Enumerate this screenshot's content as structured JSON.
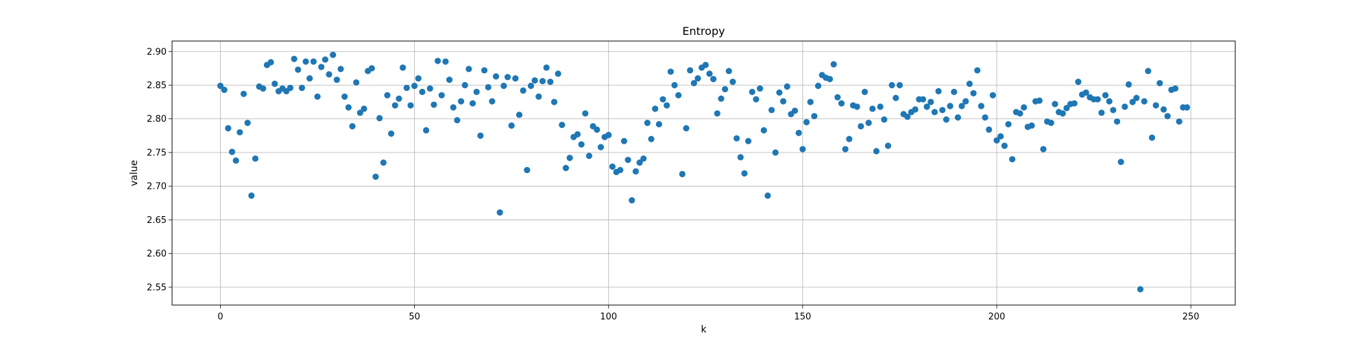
{
  "chart_data": {
    "type": "scatter",
    "title": "Entropy",
    "xlabel": "k",
    "ylabel": "value",
    "xlim": [
      -12.45,
      261.45
    ],
    "ylim": [
      2.5235,
      2.9155
    ],
    "xticks": [
      0,
      50,
      100,
      150,
      200,
      250
    ],
    "yticks": [
      2.55,
      2.6,
      2.65,
      2.7,
      2.75,
      2.8,
      2.85,
      2.9
    ],
    "ytick_labels": [
      "2.55",
      "2.60",
      "2.65",
      "2.70",
      "2.75",
      "2.80",
      "2.85",
      "2.90"
    ],
    "grid": true,
    "color": "#1f77b4",
    "series": [
      {
        "x": [
          0,
          1,
          2,
          3,
          4,
          5,
          6,
          7,
          8,
          9,
          10,
          11,
          12,
          13,
          14,
          15,
          16,
          17,
          18,
          19,
          20,
          21,
          22,
          23,
          24,
          25,
          26,
          27,
          28,
          29,
          30,
          31,
          32,
          33,
          34,
          35,
          36,
          37,
          38,
          39,
          40,
          41,
          42,
          43,
          44,
          45,
          46,
          47,
          48,
          49,
          50,
          51,
          52,
          53,
          54,
          55,
          56,
          57,
          58,
          59,
          60,
          61,
          62,
          63,
          64,
          65,
          66,
          67,
          68,
          69,
          70,
          71,
          72,
          73,
          74,
          75,
          76,
          77,
          78,
          79,
          80,
          81,
          82,
          83,
          84,
          85,
          86,
          87,
          88,
          89,
          90,
          91,
          92,
          93,
          94,
          95,
          96,
          97,
          98,
          99,
          100,
          101,
          102,
          103,
          104,
          105,
          106,
          107,
          108,
          109,
          110,
          111,
          112,
          113,
          114,
          115,
          116,
          117,
          118,
          119,
          120,
          121,
          122,
          123,
          124,
          125,
          126,
          127,
          128,
          129,
          130,
          131,
          132,
          133,
          134,
          135,
          136,
          137,
          138,
          139,
          140,
          141,
          142,
          143,
          144,
          145,
          146,
          147,
          148,
          149,
          150,
          151,
          152,
          153,
          154,
          155,
          156,
          157,
          158,
          159,
          160,
          161,
          162,
          163,
          164,
          165,
          166,
          167,
          168,
          169,
          170,
          171,
          172,
          173,
          174,
          175,
          176,
          177,
          178,
          179,
          180,
          181,
          182,
          183,
          184,
          185,
          186,
          187,
          188,
          189,
          190,
          191,
          192,
          193,
          194,
          195,
          196,
          197,
          198,
          199,
          200,
          201,
          202,
          203,
          204,
          205,
          206,
          207,
          208,
          209,
          210,
          211,
          212,
          213,
          214,
          215,
          216,
          217,
          218,
          219,
          220,
          221,
          222,
          223,
          224,
          225,
          226,
          227,
          228,
          229,
          230,
          231,
          232,
          233,
          234,
          235,
          236,
          237,
          238,
          239,
          240,
          241,
          242,
          243,
          244,
          245,
          246,
          247,
          248,
          249
        ],
        "y": [
          2.849,
          2.843,
          2.786,
          2.751,
          2.738,
          2.78,
          2.837,
          2.794,
          2.686,
          2.741,
          2.848,
          2.845,
          2.88,
          2.884,
          2.852,
          2.841,
          2.845,
          2.841,
          2.846,
          2.889,
          2.873,
          2.846,
          2.885,
          2.86,
          2.885,
          2.833,
          2.877,
          2.888,
          2.866,
          2.895,
          2.858,
          2.874,
          2.833,
          2.817,
          2.789,
          2.854,
          2.809,
          2.815,
          2.871,
          2.875,
          2.714,
          2.801,
          2.735,
          2.835,
          2.778,
          2.82,
          2.83,
          2.876,
          2.846,
          2.82,
          2.849,
          2.86,
          2.84,
          2.783,
          2.845,
          2.821,
          2.886,
          2.835,
          2.885,
          2.858,
          2.817,
          2.798,
          2.826,
          2.85,
          2.874,
          2.823,
          2.84,
          2.775,
          2.872,
          2.847,
          2.826,
          2.863,
          2.661,
          2.849,
          2.862,
          2.79,
          2.86,
          2.806,
          2.842,
          2.724,
          2.849,
          2.857,
          2.833,
          2.856,
          2.876,
          2.855,
          2.825,
          2.867,
          2.791,
          2.727,
          2.742,
          2.773,
          2.777,
          2.762,
          2.808,
          2.745,
          2.789,
          2.784,
          2.758,
          2.773,
          2.776,
          2.729,
          2.721,
          2.724,
          2.767,
          2.739,
          2.679,
          2.722,
          2.735,
          2.741,
          2.794,
          2.77,
          2.815,
          2.792,
          2.829,
          2.82,
          2.87,
          2.85,
          2.835,
          2.718,
          2.786,
          2.872,
          2.853,
          2.86,
          2.876,
          2.88,
          2.867,
          2.859,
          2.808,
          2.83,
          2.844,
          2.871,
          2.855,
          2.771,
          2.743,
          2.719,
          2.767,
          2.84,
          2.829,
          2.845,
          2.783,
          2.686,
          2.813,
          2.75,
          2.839,
          2.826,
          2.848,
          2.807,
          2.812,
          2.779,
          2.755,
          2.795,
          2.825,
          2.804,
          2.849,
          2.865,
          2.861,
          2.859,
          2.881,
          2.832,
          2.823,
          2.755,
          2.77,
          2.82,
          2.818,
          2.789,
          2.84,
          2.794,
          2.815,
          2.752,
          2.818,
          2.799,
          2.76,
          2.85,
          2.831,
          2.85,
          2.807,
          2.803,
          2.81,
          2.814,
          2.829,
          2.829,
          2.818,
          2.825,
          2.81,
          2.841,
          2.813,
          2.799,
          2.819,
          2.84,
          2.802,
          2.819,
          2.826,
          2.852,
          2.838,
          2.872,
          2.819,
          2.802,
          2.784,
          2.835,
          2.768,
          2.774,
          2.76,
          2.792,
          2.74,
          2.81,
          2.808,
          2.817,
          2.788,
          2.79,
          2.826,
          2.827,
          2.755,
          2.796,
          2.794,
          2.822,
          2.81,
          2.808,
          2.816,
          2.822,
          2.823,
          2.855,
          2.836,
          2.839,
          2.832,
          2.829,
          2.829,
          2.809,
          2.835,
          2.826,
          2.813,
          2.796,
          2.736,
          2.818,
          2.851,
          2.825,
          2.831,
          2.547,
          2.826,
          2.871,
          2.772,
          2.82,
          2.853,
          2.814,
          2.804,
          2.843,
          2.845,
          2.796,
          2.817,
          2.817
        ]
      }
    ]
  }
}
